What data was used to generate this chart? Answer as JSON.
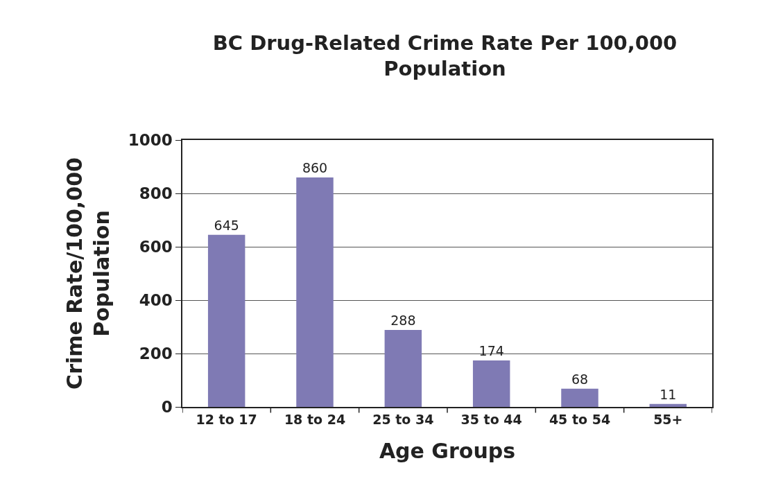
{
  "chart_data": {
    "type": "bar",
    "title": "BC Drug-Related Crime Rate Per 100,000 Population",
    "xlabel": "Age Groups",
    "ylabel": "Crime Rate/100,000 Population",
    "categories": [
      "12 to 17",
      "18 to 24",
      "25 to 34",
      "35 to 44",
      "45 to 54",
      "55+"
    ],
    "values": [
      645,
      860,
      288,
      174,
      68,
      11
    ],
    "color": "#7f7ab4",
    "ylim": [
      0,
      1000
    ],
    "yticks": [
      0,
      200,
      400,
      600,
      800,
      1000
    ],
    "grid": "y",
    "data_labels": true,
    "legend": false
  }
}
